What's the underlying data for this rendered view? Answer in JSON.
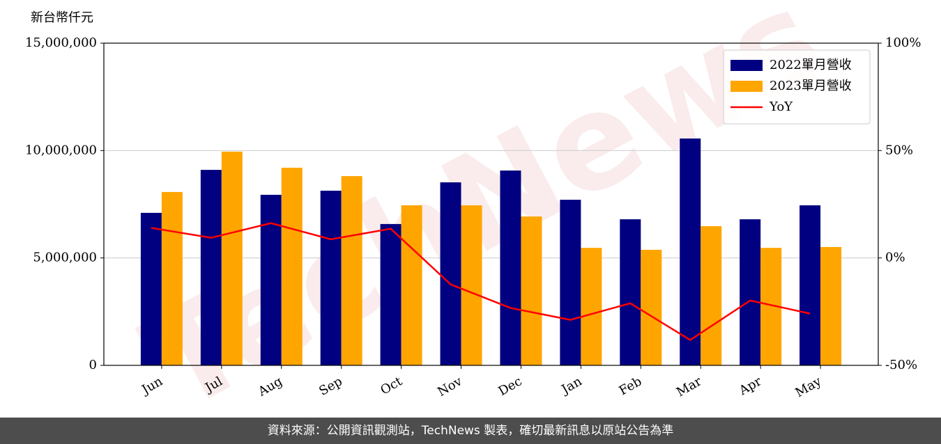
{
  "chart_data": {
    "type": "bar_line",
    "y_axis_label": "新台幣仟元",
    "watermark": "TechNews",
    "categories": [
      "Jun",
      "Jul",
      "Aug",
      "Sep",
      "Oct",
      "Nov",
      "Dec",
      "Jan",
      "Feb",
      "Mar",
      "Apr",
      "May"
    ],
    "series": [
      {
        "name": "2022單月營收",
        "type": "bar",
        "color": "#000080",
        "values": [
          7100000,
          9100000,
          7940000,
          8130000,
          6580000,
          8520000,
          9070000,
          7710000,
          6800000,
          10560000,
          6800000,
          7450000
        ]
      },
      {
        "name": "2023單月營收",
        "type": "bar",
        "color": "#ffa500",
        "values": [
          8070000,
          9950000,
          9200000,
          8810000,
          7450000,
          7450000,
          6930000,
          5470000,
          5380000,
          6480000,
          5470000,
          5510000
        ]
      },
      {
        "name": "YoY",
        "type": "line",
        "axis": "y2",
        "color": "#ff0000",
        "values": [
          14,
          9.4,
          16.2,
          8.7,
          13.6,
          -12.3,
          -23.3,
          -28.8,
          -21.1,
          -38.2,
          -19.8,
          -25.9
        ]
      }
    ],
    "ylim": [
      0,
      15000000
    ],
    "yticks": [
      0,
      {
        "value": 5000000,
        "label": "5,000,000"
      },
      {
        "value": 10000000,
        "label": "10,000,000"
      },
      {
        "value": 15000000,
        "label": "15,000,000"
      }
    ],
    "y2lim": [
      -50,
      100
    ],
    "y2ticks": [
      {
        "value": -50,
        "label": "-50%"
      },
      {
        "value": 0,
        "label": "0%"
      },
      {
        "value": 50,
        "label": "50%"
      },
      {
        "value": 100,
        "label": "100%"
      }
    ],
    "grid": true,
    "legend": "upper right",
    "footer": "資料來源：公開資訊觀測站，TechNews 製表，確切最新訊息以原站公告為準"
  }
}
